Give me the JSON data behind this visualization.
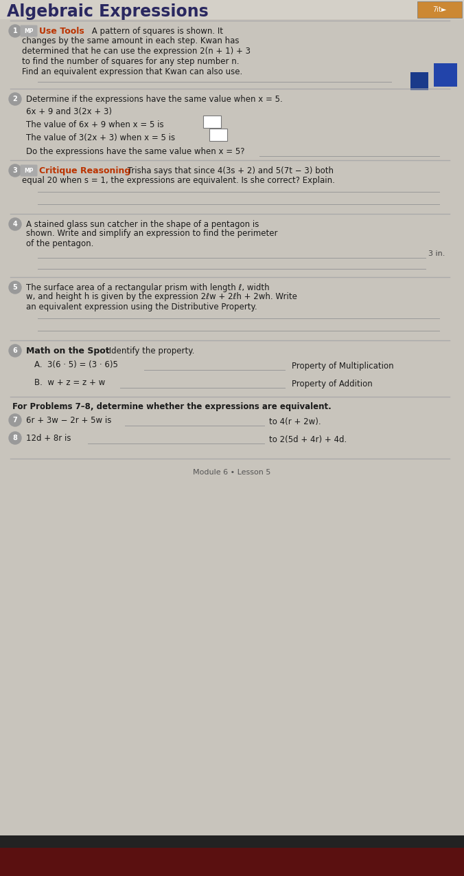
{
  "bg_color": "#c8c4bc",
  "page_bg": "#d8d5ce",
  "page_content_bg": "#e2e0db",
  "title": "Algebraic Expressions",
  "title_color": "#2a2860",
  "title_fontsize": 17,
  "body_color": "#1a1a1a",
  "body_fontsize": 8.5,
  "red_text_color": "#bb3300",
  "bold_text_color": "#111111",
  "line_color": "#999999",
  "separator_color": "#aaaaaa",
  "circle_color": "#888888",
  "number_color": "#555555",
  "badge_color": "#999999",
  "footer_text": "Module 6 • Lesson 5",
  "img_thumbnail_color": "#cc8833",
  "blue_sq1_color": "#1a3a8a",
  "blue_sq2_color": "#2244aa",
  "problems": [
    {
      "num": "1",
      "badge": "MP",
      "highlight": "Use Tools",
      "lines": [
        "A pattern of squares is shown. It",
        "changes by the same amount in each step. Kwan has",
        "determined that he can use the expression 2(n + 1) + 3",
        "to find the number of squares for any step number n.",
        "Find an equivalent expression that Kwan can also use."
      ],
      "answer_lines": 1
    },
    {
      "num": "2",
      "badge": null,
      "highlight": null,
      "lines": [
        "Determine if the expressions have the same value when x = 5.",
        "6x + 9 and 3(2x + 3)",
        "The value of 6x + 9 when x = 5 is [BOX]",
        "The value of 3(2x + 3) when x = 5 is [BOX]",
        "Do the expressions have the same value when x = 5? [LINE]"
      ],
      "answer_lines": 0
    },
    {
      "num": "3",
      "badge": "MP",
      "highlight": "Critique Reasoning",
      "lines": [
        " Trisha says that since 4(3s + 2) and 5(7t − 3) both",
        "equal 20 when s = 1, the expressions are equivalent. Is she correct? Explain."
      ],
      "answer_lines": 2
    },
    {
      "num": "4",
      "badge": null,
      "highlight": null,
      "lines": [
        "A stained glass sun catcher in the shape of a pentagon is",
        "shown. Write and simplify an expression to find the perimeter",
        "of the pentagon."
      ],
      "answer_lines": 2,
      "right_note": "3 in."
    },
    {
      "num": "5",
      "badge": null,
      "highlight": null,
      "lines": [
        "The surface area of a rectangular prism with length ℓ, width",
        "w, and height h is given by the expression 2ℓw + 2ℓh + 2wh. Write",
        "an equivalent expression using the Distributive Property."
      ],
      "answer_lines": 2
    },
    {
      "num": "6",
      "badge": null,
      "highlight": "Math on the Spot",
      "highlight_bold": true,
      "lines": [
        "Identify the property."
      ],
      "answer_lines": 0,
      "property_lines": [
        {
          "text": "A.  3(6 · 5) = (3 · 6)5",
          "suffix": "Property of Multiplication"
        },
        {
          "text": "B.  w + z = z + w",
          "suffix": "Property of Addition"
        }
      ]
    }
  ],
  "equiv_problems": [
    {
      "num": "7",
      "text": "6r + 3w − 2r + 5w is",
      "suffix": "to 4(r + 2w)."
    },
    {
      "num": "8",
      "text": "12d + 8r is",
      "suffix": "to 2(5d + 4r) + 4d."
    }
  ]
}
